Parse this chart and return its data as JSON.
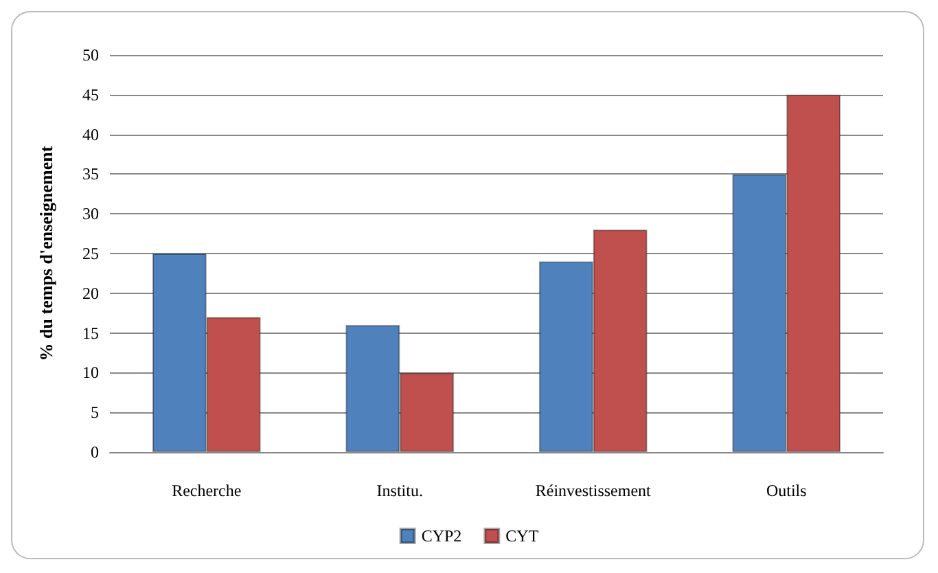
{
  "chart_data": {
    "type": "bar",
    "ylabel": "% du temps d'enseignement",
    "categories": [
      "Recherche",
      "Institu.",
      "Réinvestissement",
      "Outils"
    ],
    "series": [
      {
        "name": "CYP2",
        "color": "#4f81bd",
        "values": [
          25,
          16,
          24,
          35
        ]
      },
      {
        "name": "CYT",
        "color": "#c0504d",
        "values": [
          17,
          10,
          28,
          45
        ]
      }
    ],
    "ylim": [
      0,
      50
    ],
    "yticks": [
      0,
      5,
      10,
      15,
      20,
      25,
      30,
      35,
      40,
      45,
      50
    ],
    "grid": "y",
    "legend": "bottom"
  }
}
